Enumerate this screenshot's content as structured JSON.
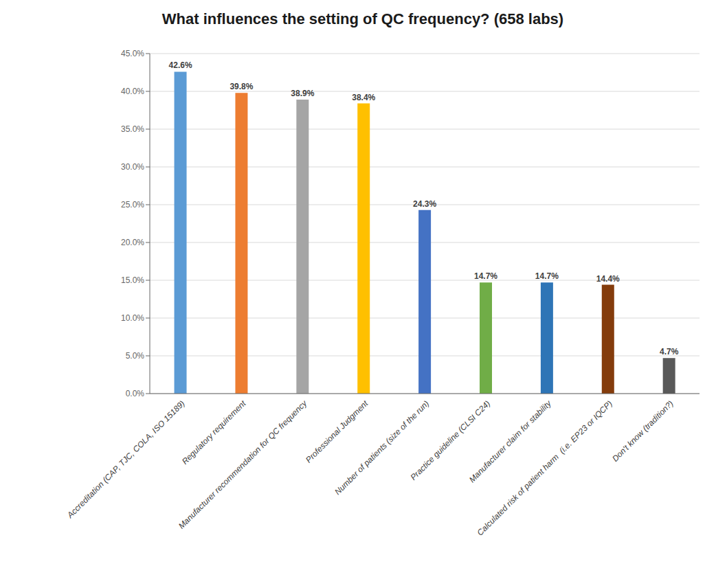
{
  "chart_data": {
    "type": "bar",
    "title": "What influences the setting of QC frequency? (658 labs)",
    "categories": [
      "Accreditation (CAP, TJC, COLA, ISO 15189)",
      "Regulatory requirement",
      "Manufacturer recommendation for QC frequency",
      "Professional Judgment",
      "Number of patients (size of the run)",
      "Practice guideline (CLSI C24)",
      "Manufacturer claim for stability",
      "Calculated risk of patient harm  (i.e. EP23 or IQCP)",
      "Don't know (tradition?)"
    ],
    "values": [
      42.6,
      39.8,
      38.9,
      38.4,
      24.3,
      14.7,
      14.7,
      14.4,
      4.7
    ],
    "value_labels": [
      "42.6%",
      "39.8%",
      "38.9%",
      "38.4%",
      "24.3%",
      "14.7%",
      "14.7%",
      "14.4%",
      "4.7%"
    ],
    "colors": [
      "#5B9BD5",
      "#ED7D31",
      "#A5A5A5",
      "#FFC000",
      "#4472C4",
      "#70AD47",
      "#2E75B6",
      "#843C0C",
      "#595959"
    ],
    "ylim": [
      0,
      45
    ],
    "yticks": [
      {
        "value": 0,
        "label": "0.0%"
      },
      {
        "value": 5,
        "label": "5.0%"
      },
      {
        "value": 10,
        "label": "10.0%"
      },
      {
        "value": 15,
        "label": "15.0%"
      },
      {
        "value": 20,
        "label": "20.0%"
      },
      {
        "value": 25,
        "label": "25.0%"
      },
      {
        "value": 30,
        "label": "30.0%"
      },
      {
        "value": 35,
        "label": "35.0%"
      },
      {
        "value": 40,
        "label": "40.0%"
      },
      {
        "value": 45,
        "label": "45.0%"
      }
    ],
    "grid": true,
    "data_labels": true
  }
}
